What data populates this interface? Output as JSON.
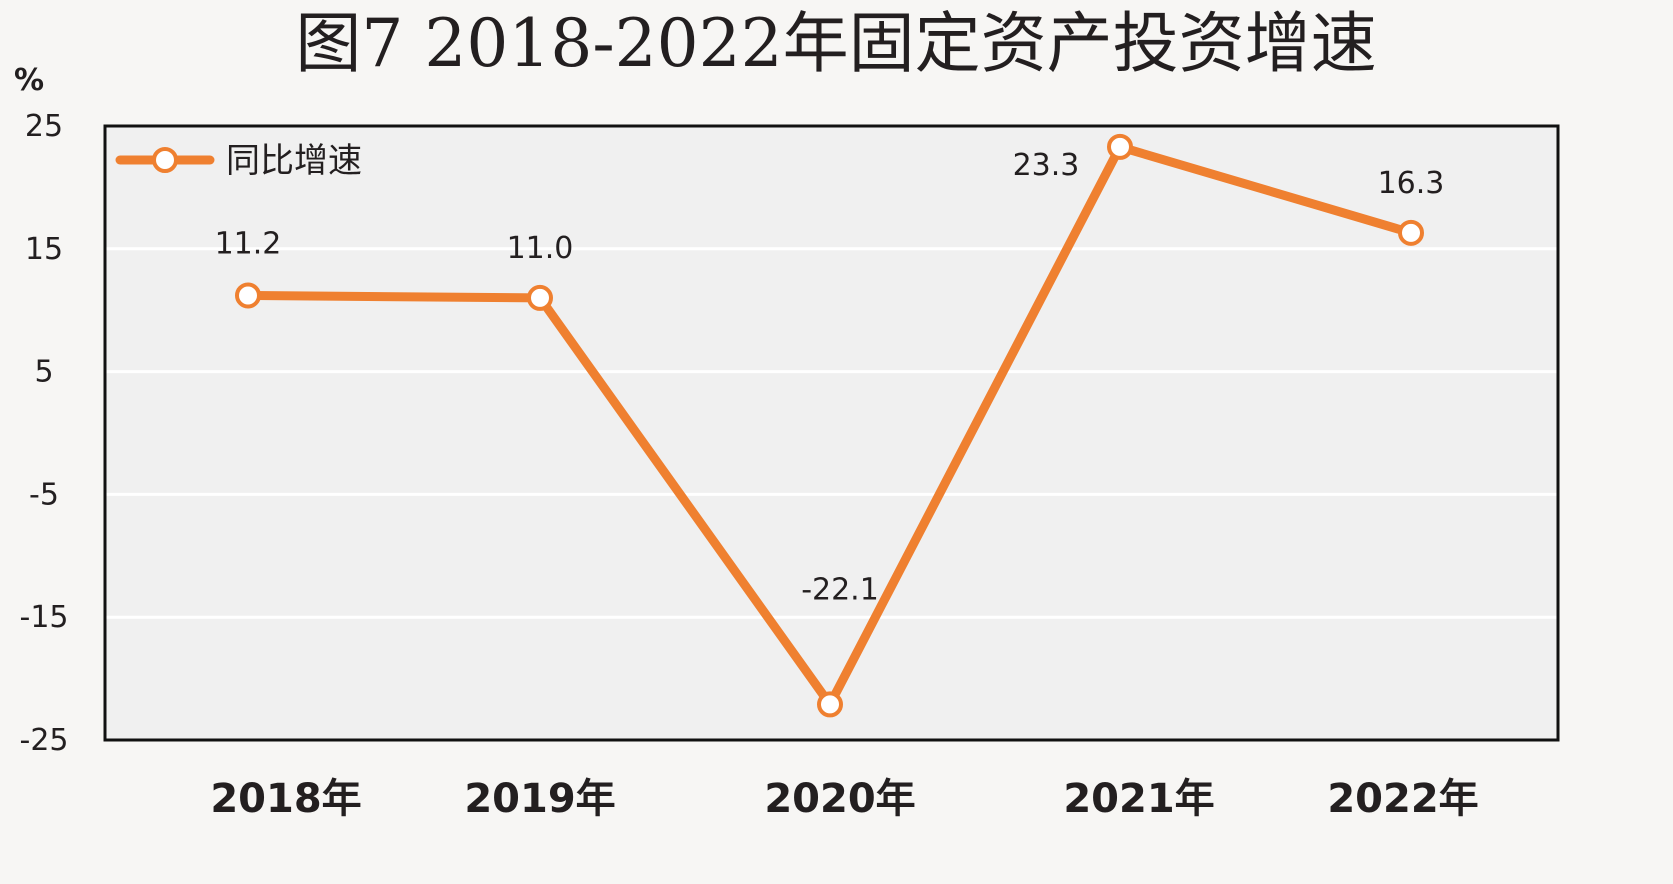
{
  "chart_data": {
    "type": "line",
    "title": "图7  2018-2022年固定资产投资增速",
    "ylabel": "%",
    "xlabel": "",
    "categories": [
      "2018年",
      "2019年",
      "2020年",
      "2021年",
      "2022年"
    ],
    "series": [
      {
        "name": "同比增速",
        "values": [
          11.2,
          11.0,
          -22.1,
          23.3,
          16.3
        ],
        "labels": [
          "11.2",
          "11.0",
          "-22.1",
          "23.3",
          "16.3"
        ],
        "color": "#ef8030"
      }
    ],
    "y_ticks": [
      "25",
      "15",
      "5",
      "-5",
      "-15",
      "-25"
    ],
    "ylim": [
      -25,
      25
    ],
    "grid": true,
    "legend_position": "top-left",
    "plot_background": "#f0f0f0",
    "page_background": "#f7f6f4"
  }
}
